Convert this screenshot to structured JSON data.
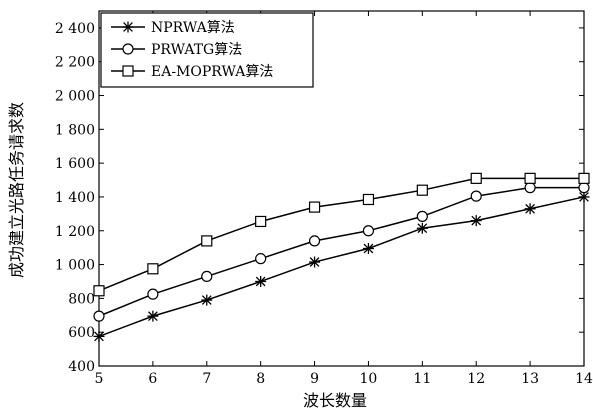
{
  "chart_data": {
    "type": "line",
    "title": "",
    "xlabel": "波长数量",
    "ylabel": "成功建立光路任务请求数",
    "xlim": [
      5,
      14
    ],
    "ylim": [
      400,
      2500
    ],
    "x": [
      5,
      6,
      7,
      8,
      9,
      10,
      11,
      12,
      13,
      14
    ],
    "x_ticks": [
      "5",
      "6",
      "7",
      "8",
      "9",
      "10",
      "11",
      "12",
      "13",
      "14"
    ],
    "y_ticks": [
      {
        "value": 400,
        "label": "400"
      },
      {
        "value": 600,
        "label": "600"
      },
      {
        "value": 800,
        "label": "800"
      },
      {
        "value": 1000,
        "label": "1 000"
      },
      {
        "value": 1200,
        "label": "1 200"
      },
      {
        "value": 1400,
        "label": "1 400"
      },
      {
        "value": 1600,
        "label": "1 600"
      },
      {
        "value": 1800,
        "label": "1 800"
      },
      {
        "value": 2000,
        "label": "2 000"
      },
      {
        "value": 2200,
        "label": "2 200"
      },
      {
        "value": 2400,
        "label": "2 400"
      }
    ],
    "grid": false,
    "legend_position": "top-left",
    "series": [
      {
        "name": "NPRWA算法",
        "marker": "asterisk",
        "values": [
          575,
          695,
          790,
          900,
          1015,
          1095,
          1215,
          1260,
          1330,
          1400
        ]
      },
      {
        "name": "PRWATG算法",
        "marker": "circle",
        "values": [
          695,
          825,
          930,
          1035,
          1140,
          1200,
          1285,
          1405,
          1455,
          1455
        ]
      },
      {
        "name": "EA-MOPRWA算法",
        "marker": "square",
        "values": [
          845,
          975,
          1140,
          1255,
          1340,
          1385,
          1440,
          1510,
          1510,
          1510
        ]
      }
    ]
  }
}
